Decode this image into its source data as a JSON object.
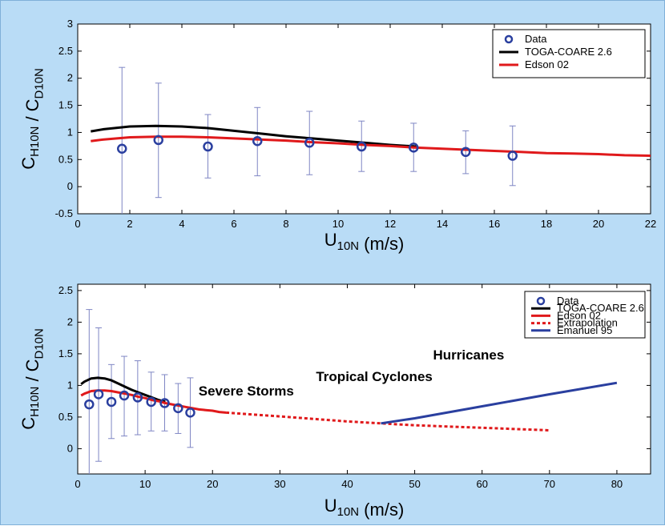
{
  "chart_data": [
    {
      "type": "scatter",
      "xlabel": "U_10N (m/s)",
      "ylabel": "C_H10N / C_D10N",
      "xlim": [
        0,
        22
      ],
      "ylim": [
        -0.5,
        3
      ],
      "xticks": [
        0,
        2,
        4,
        6,
        8,
        10,
        12,
        14,
        16,
        18,
        20,
        22
      ],
      "yticks": [
        -0.5,
        0,
        0.5,
        1,
        1.5,
        2,
        2.5,
        3
      ],
      "legend_position": "top-right",
      "series": [
        {
          "name": "Data",
          "kind": "points-with-errorbars",
          "color": "#2a3f9f",
          "x": [
            1.7,
            3.1,
            5.0,
            6.9,
            8.9,
            10.9,
            12.9,
            14.9,
            16.7
          ],
          "y": [
            0.7,
            0.86,
            0.74,
            0.84,
            0.81,
            0.74,
            0.72,
            0.64,
            0.57
          ],
          "err_low": [
            -0.55,
            -0.2,
            0.16,
            0.2,
            0.22,
            0.28,
            0.28,
            0.24,
            0.02
          ],
          "err_high": [
            2.2,
            1.91,
            1.33,
            1.46,
            1.39,
            1.21,
            1.17,
            1.03,
            1.12
          ]
        },
        {
          "name": "TOGA-COARE 2.6",
          "kind": "line",
          "color": "#000000",
          "x": [
            0.5,
            1,
            2,
            3,
            4,
            5,
            6,
            7,
            8,
            9,
            10,
            11,
            12,
            13
          ],
          "y": [
            1.02,
            1.06,
            1.11,
            1.12,
            1.11,
            1.08,
            1.03,
            0.98,
            0.93,
            0.89,
            0.85,
            0.81,
            0.77,
            0.74
          ]
        },
        {
          "name": "Edson 02",
          "kind": "line",
          "color": "#e0191b",
          "x": [
            0.5,
            1,
            2,
            3,
            4,
            5,
            6,
            7,
            8,
            9,
            10,
            11,
            12,
            13,
            14,
            15,
            16,
            17,
            18,
            19,
            20,
            21,
            22
          ],
          "y": [
            0.84,
            0.87,
            0.91,
            0.92,
            0.92,
            0.91,
            0.89,
            0.87,
            0.85,
            0.82,
            0.8,
            0.77,
            0.75,
            0.72,
            0.7,
            0.68,
            0.66,
            0.64,
            0.62,
            0.61,
            0.6,
            0.58,
            0.57
          ]
        }
      ]
    },
    {
      "type": "scatter",
      "xlabel": "U_10N (m/s)",
      "ylabel": "C_H10N / C_D10N",
      "xlim": [
        0,
        85
      ],
      "ylim": [
        -0.4,
        2.6
      ],
      "xticks": [
        0,
        10,
        20,
        30,
        40,
        50,
        60,
        70,
        80
      ],
      "yticks": [
        0,
        0.5,
        1,
        1.5,
        2,
        2.5
      ],
      "legend_position": "top-right",
      "series": [
        {
          "name": "Data",
          "kind": "points-with-errorbars",
          "color": "#2a3f9f",
          "x": [
            1.7,
            3.1,
            5.0,
            6.9,
            8.9,
            10.9,
            12.9,
            14.9,
            16.7
          ],
          "y": [
            0.7,
            0.86,
            0.74,
            0.84,
            0.81,
            0.74,
            0.72,
            0.64,
            0.57
          ],
          "err_low": [
            -0.55,
            -0.2,
            0.16,
            0.2,
            0.22,
            0.28,
            0.28,
            0.24,
            0.02
          ],
          "err_high": [
            2.2,
            1.91,
            1.33,
            1.46,
            1.39,
            1.21,
            1.17,
            1.03,
            1.12
          ]
        },
        {
          "name": "TOGA-COARE 2.6",
          "kind": "line",
          "color": "#000000",
          "x": [
            0.5,
            1,
            2,
            3,
            4,
            5,
            6,
            7,
            8,
            9,
            10,
            11,
            12,
            13
          ],
          "y": [
            1.02,
            1.06,
            1.11,
            1.12,
            1.11,
            1.08,
            1.03,
            0.98,
            0.93,
            0.89,
            0.85,
            0.81,
            0.77,
            0.74
          ]
        },
        {
          "name": "Edson 02",
          "kind": "line",
          "color": "#e0191b",
          "x": [
            0.5,
            1,
            2,
            3,
            4,
            5,
            6,
            7,
            8,
            9,
            10,
            11,
            12,
            13,
            14,
            15,
            16,
            17,
            18,
            19,
            20,
            21,
            22
          ],
          "y": [
            0.84,
            0.87,
            0.91,
            0.92,
            0.92,
            0.91,
            0.89,
            0.87,
            0.85,
            0.82,
            0.8,
            0.77,
            0.75,
            0.72,
            0.7,
            0.68,
            0.66,
            0.64,
            0.62,
            0.61,
            0.6,
            0.58,
            0.57
          ]
        },
        {
          "name": "Extrapolation",
          "kind": "dashed-line",
          "color": "#e0191b",
          "x": [
            22,
            30,
            40,
            45,
            50,
            60,
            70
          ],
          "y": [
            0.57,
            0.51,
            0.43,
            0.4,
            0.37,
            0.33,
            0.29
          ]
        },
        {
          "name": "Emanuel 95",
          "kind": "line",
          "color": "#2a3f9f",
          "x": [
            45,
            50,
            60,
            70,
            80
          ],
          "y": [
            0.4,
            0.48,
            0.67,
            0.86,
            1.04
          ]
        }
      ],
      "annotations": [
        {
          "text": "Hurricanes",
          "x": 58,
          "y": 1.41,
          "color": "#2a3f9f"
        },
        {
          "text": "Tropical Cyclones",
          "x": 44,
          "y": 1.07,
          "color": "#e0191b"
        },
        {
          "text": "Severe Storms",
          "x": 25,
          "y": 0.84,
          "color": "#55bb33"
        }
      ]
    }
  ]
}
